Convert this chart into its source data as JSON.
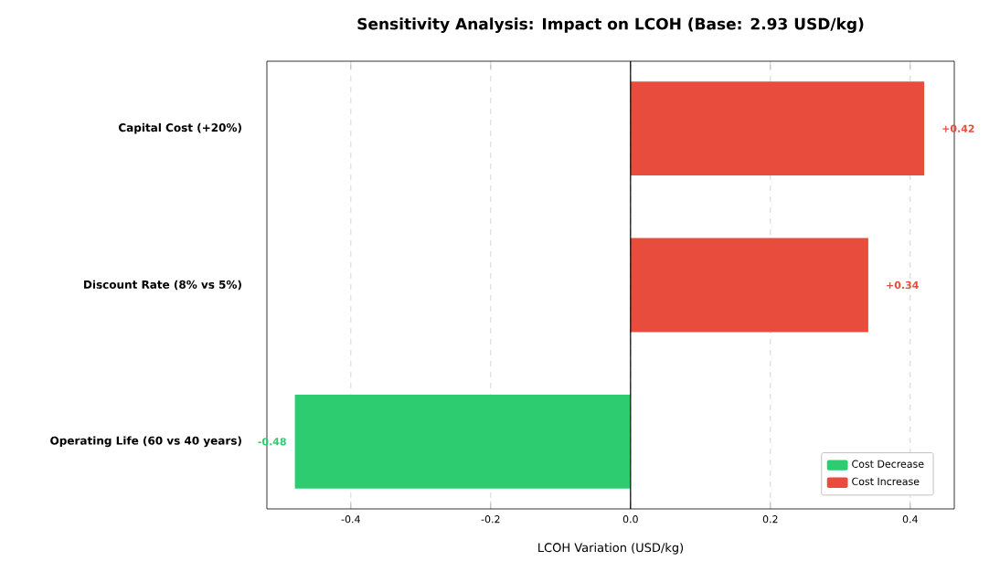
{
  "chart_data": {
    "type": "bar",
    "orientation": "horizontal",
    "title": "Sensitivity Analysis: Impact on LCOH (Base: 2.93 USD/kg)",
    "xlabel": "LCOH Variation (USD/kg)",
    "categories": [
      "Capital Cost (+20%)",
      "Discount Rate (8% vs 5%)",
      "Operating Life (60 vs 40 years)"
    ],
    "series": [
      {
        "name": "Cost Decrease",
        "color": "#2ecc71",
        "values": [
          null,
          null,
          -0.48
        ],
        "value_labels": [
          null,
          null,
          "-0.48"
        ]
      },
      {
        "name": "Cost Increase",
        "color": "#e74c3c",
        "values": [
          0.42,
          0.34,
          null
        ],
        "value_labels": [
          "+0.42",
          "+0.34",
          null
        ]
      }
    ],
    "xlim": [
      -0.52,
      0.463
    ],
    "xticks": [
      -0.4,
      -0.2,
      {
        "value": 0,
        "label": "0.0"
      },
      0.2,
      0.4
    ],
    "grid": "x",
    "legend": "bottom right",
    "ref_lines": [
      {
        "axis": "x",
        "value": 0,
        "color": "#000000"
      }
    ]
  }
}
